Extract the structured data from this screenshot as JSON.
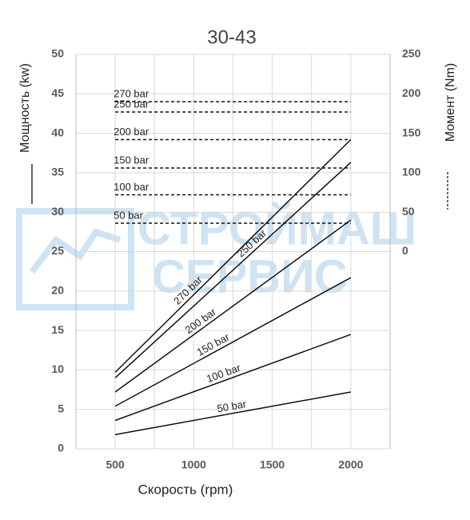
{
  "chart_data": {
    "type": "line",
    "title": "30-43",
    "x_label": "Скорость  (rpm)",
    "y_label": "Мощность (kw)",
    "y2_label": "Момент (Nm)",
    "watermark": [
      "СТРОЙМАШ",
      "СЕРВИС"
    ],
    "x": [
      500,
      2000
    ],
    "xlim": [
      250,
      2250
    ],
    "xticks": [
      500,
      1000,
      1500,
      2000
    ],
    "xminor": [
      750,
      1250,
      1750
    ],
    "ylim": [
      0,
      50
    ],
    "yticks": [
      0,
      5,
      10,
      15,
      20,
      25,
      30,
      35,
      40,
      45,
      50
    ],
    "y2lim": [
      -250,
      250
    ],
    "y2ticks": [
      0,
      50,
      100,
      150,
      200,
      250
    ],
    "grid": true,
    "color": "#111111",
    "series": [
      {
        "name": "270 bar",
        "values": [
          9.7,
          39.2
        ]
      },
      {
        "name": "250 bar",
        "values": [
          9.0,
          36.3
        ]
      },
      {
        "name": "200 bar",
        "values": [
          7.2,
          29.0
        ]
      },
      {
        "name": "150 bar",
        "values": [
          5.4,
          21.7
        ]
      },
      {
        "name": "100 bar",
        "values": [
          3.6,
          14.5
        ]
      },
      {
        "name": "50 bar",
        "values": [
          1.8,
          7.2
        ]
      },
      {
        "name": "270 bar",
        "axis": "y2",
        "dashed": true,
        "values": [
          190,
          190
        ]
      },
      {
        "name": "250 bar",
        "axis": "y2",
        "dashed": true,
        "values": [
          177,
          177
        ]
      },
      {
        "name": "200 bar",
        "axis": "y2",
        "dashed": true,
        "values": [
          142,
          142
        ]
      },
      {
        "name": "150 bar",
        "axis": "y2",
        "dashed": true,
        "values": [
          106,
          106
        ]
      },
      {
        "name": "100 bar",
        "axis": "y2",
        "dashed": true,
        "values": [
          72,
          72
        ]
      },
      {
        "name": "50 bar",
        "axis": "y2",
        "dashed": true,
        "values": [
          36,
          36
        ]
      }
    ]
  }
}
